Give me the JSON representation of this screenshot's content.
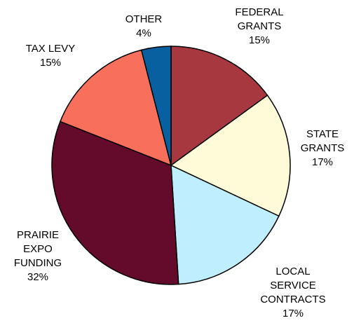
{
  "chart_data": {
    "type": "pie",
    "slices": [
      {
        "label": [
          "FEDERAL",
          "GRANTS"
        ],
        "value": 15,
        "value_label": "15%",
        "color": "#a83840"
      },
      {
        "label": [
          "STATE",
          "GRANTS"
        ],
        "value": 17,
        "value_label": "17%",
        "color": "#fffbd8"
      },
      {
        "label": [
          "LOCAL",
          "SERVICE",
          "CONTRACTS"
        ],
        "value": 17,
        "value_label": "17%",
        "color": "#bfefff"
      },
      {
        "label": [
          "PRAIRIE",
          "EXPO",
          "FUNDING"
        ],
        "value": 32,
        "value_label": "32%",
        "color": "#640a2a"
      },
      {
        "label": [
          "TAX LEVY"
        ],
        "value": 15,
        "value_label": "15%",
        "color": "#f8705c"
      },
      {
        "label": [
          "OTHER"
        ],
        "value": 4,
        "value_label": "4%",
        "color": "#0860a0"
      }
    ],
    "start_angle_deg": 0,
    "direction": "clockwise"
  }
}
